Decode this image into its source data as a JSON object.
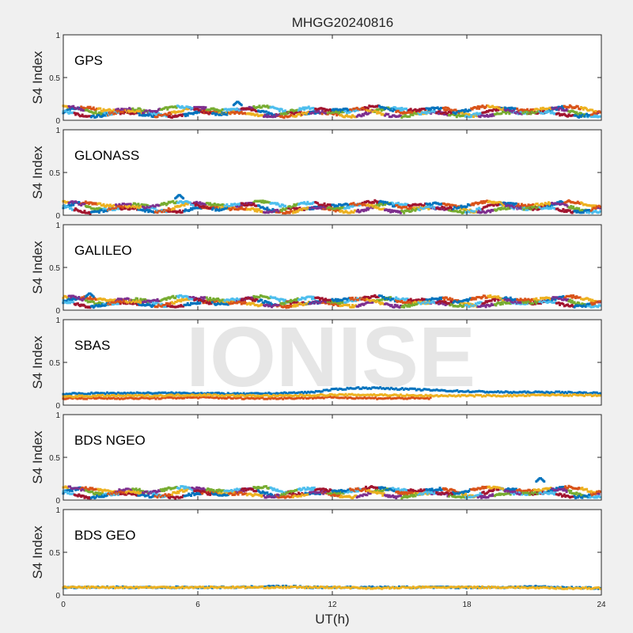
{
  "figure": {
    "title": "MHGG20240816",
    "watermark": "IONISE",
    "xlabel": "UT(h)",
    "x_ticks": [
      "0",
      "6",
      "12",
      "18",
      "24"
    ],
    "background_color": "#f0f0f0",
    "axes_color": "#ffffff"
  },
  "chart_data": [
    {
      "type": "scatter",
      "panel": "GPS",
      "ylabel": "S4 Index",
      "xlim": [
        0,
        24
      ],
      "ylim": [
        0,
        1
      ],
      "yticks": [
        "0",
        "0.5",
        "1"
      ],
      "grid": false,
      "series_colors": [
        "#0072bd",
        "#d95319",
        "#edb120",
        "#7e2f8e",
        "#77ac30",
        "#4dbeee",
        "#a2142f"
      ],
      "typical_s4_range": [
        0.03,
        0.17
      ],
      "max_s4": 0.22,
      "max_s4_time_h": 7.8
    },
    {
      "type": "scatter",
      "panel": "GLONASS",
      "ylabel": "S4 Index",
      "xlim": [
        0,
        24
      ],
      "ylim": [
        0,
        1
      ],
      "yticks": [
        "0",
        "0.5",
        "1"
      ],
      "grid": false,
      "series_colors": [
        "#0072bd",
        "#d95319",
        "#edb120",
        "#7e2f8e",
        "#77ac30",
        "#4dbeee",
        "#a2142f"
      ],
      "typical_s4_range": [
        0.02,
        0.17
      ],
      "max_s4": 0.24,
      "max_s4_time_h": 5.2
    },
    {
      "type": "scatter",
      "panel": "GALILEO",
      "ylabel": "S4 Index",
      "xlim": [
        0,
        24
      ],
      "ylim": [
        0,
        1
      ],
      "yticks": [
        "0",
        "0.5",
        "1"
      ],
      "grid": false,
      "series_colors": [
        "#0072bd",
        "#d95319",
        "#edb120",
        "#7e2f8e",
        "#77ac30",
        "#4dbeee",
        "#a2142f"
      ],
      "typical_s4_range": [
        0.03,
        0.17
      ],
      "max_s4": 0.2,
      "max_s4_time_h": 1.2
    },
    {
      "type": "scatter",
      "panel": "SBAS",
      "ylabel": "S4 Index",
      "xlim": [
        0,
        24
      ],
      "ylim": [
        0,
        1
      ],
      "yticks": [
        "0",
        "0.5",
        "1"
      ],
      "grid": false,
      "series_colors": [
        "#0072bd",
        "#d95319",
        "#edb120"
      ],
      "series": [
        {
          "color": "#0072bd",
          "x": [
            0,
            2,
            4,
            6,
            8,
            10,
            11,
            12,
            13,
            14,
            15,
            16,
            18,
            20,
            22,
            24
          ],
          "y": [
            0.13,
            0.14,
            0.14,
            0.14,
            0.13,
            0.14,
            0.15,
            0.18,
            0.2,
            0.2,
            0.19,
            0.18,
            0.16,
            0.15,
            0.15,
            0.14
          ]
        },
        {
          "color": "#d95319",
          "x": [
            0,
            2,
            4,
            6,
            8,
            10,
            12,
            14,
            16.4
          ],
          "y": [
            0.08,
            0.08,
            0.08,
            0.09,
            0.08,
            0.08,
            0.09,
            0.08,
            0.08
          ]
        },
        {
          "color": "#edb120",
          "x": [
            0,
            2,
            4,
            6,
            8,
            10,
            12,
            14,
            16,
            18,
            20,
            22,
            24
          ],
          "y": [
            0.1,
            0.11,
            0.11,
            0.12,
            0.11,
            0.11,
            0.12,
            0.12,
            0.11,
            0.11,
            0.11,
            0.12,
            0.11
          ]
        }
      ]
    },
    {
      "type": "scatter",
      "panel": "BDS NGEO",
      "ylabel": "S4 Index",
      "xlim": [
        0,
        24
      ],
      "ylim": [
        0,
        1
      ],
      "yticks": [
        "0",
        "0.5",
        "1"
      ],
      "grid": false,
      "series_colors": [
        "#0072bd",
        "#d95319",
        "#edb120",
        "#7e2f8e",
        "#77ac30",
        "#4dbeee",
        "#a2142f"
      ],
      "typical_s4_range": [
        0.02,
        0.16
      ],
      "max_s4": 0.26,
      "max_s4_time_h": 21.3
    },
    {
      "type": "scatter",
      "panel": "BDS GEO",
      "ylabel": "S4 Index",
      "xlim": [
        0,
        24
      ],
      "ylim": [
        0,
        1
      ],
      "yticks": [
        "0",
        "0.5",
        "1"
      ],
      "grid": false,
      "series_colors": [
        "#0072bd",
        "#edb120"
      ],
      "series": [
        {
          "color": "#0072bd",
          "x": [
            0,
            4,
            8,
            9,
            10,
            11,
            12,
            16,
            20,
            21,
            22,
            24
          ],
          "y": [
            0.09,
            0.09,
            0.09,
            0.1,
            0.1,
            0.09,
            0.09,
            0.09,
            0.09,
            0.1,
            0.09,
            0.08
          ]
        },
        {
          "color": "#edb120",
          "x": [
            0,
            2,
            4,
            6,
            8,
            10,
            12,
            14,
            16,
            18,
            20,
            22,
            24
          ],
          "y": [
            0.09,
            0.09,
            0.09,
            0.09,
            0.09,
            0.09,
            0.09,
            0.08,
            0.09,
            0.09,
            0.09,
            0.08,
            0.08
          ]
        }
      ]
    }
  ]
}
